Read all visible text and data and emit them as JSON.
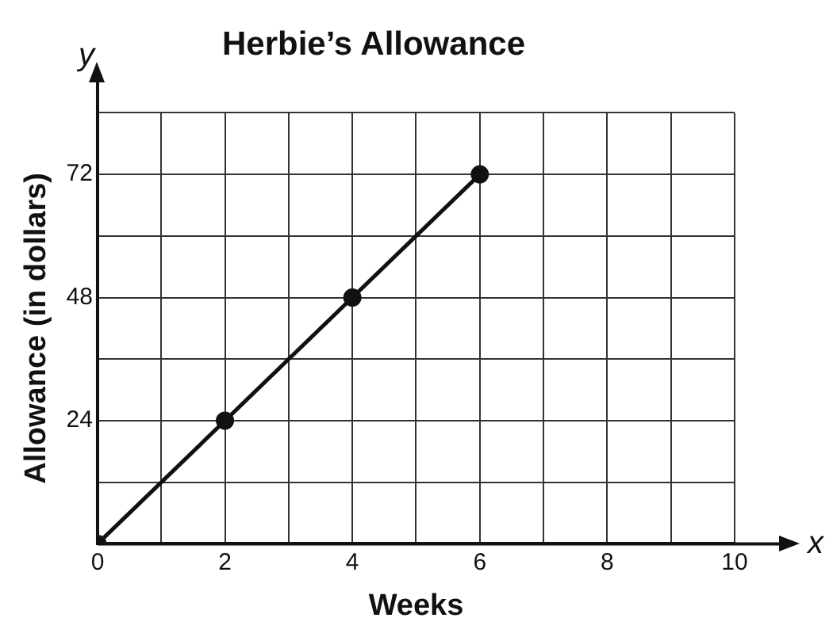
{
  "chart_data": {
    "type": "line",
    "title": "Herbie’s Allowance",
    "xlabel": "Weeks",
    "ylabel": "Allowance (in dollars)",
    "annotations": [
      "y",
      "x"
    ],
    "x": [
      0,
      2,
      4,
      6
    ],
    "series": [
      {
        "color": "#111111",
        "values": [
          0,
          24,
          48,
          72
        ]
      }
    ],
    "xlim": [
      0,
      10
    ],
    "xticks": [
      0,
      {
        "value": 1,
        "label": null
      },
      2,
      {
        "value": 3,
        "label": null
      },
      4,
      {
        "value": 5,
        "label": null
      },
      6,
      {
        "value": 7,
        "label": null
      },
      8,
      {
        "value": 9,
        "label": null
      },
      10
    ],
    "ylim": [
      0,
      84
    ],
    "yticks": [
      {
        "value": 0,
        "label": null
      },
      {
        "value": 12,
        "label": null
      },
      24,
      {
        "value": 36,
        "label": null
      },
      48,
      {
        "value": 60,
        "label": null
      },
      72,
      {
        "value": 84,
        "label": null
      }
    ],
    "grid": true,
    "legend": false,
    "marker": "circle",
    "line_style": "solid"
  }
}
